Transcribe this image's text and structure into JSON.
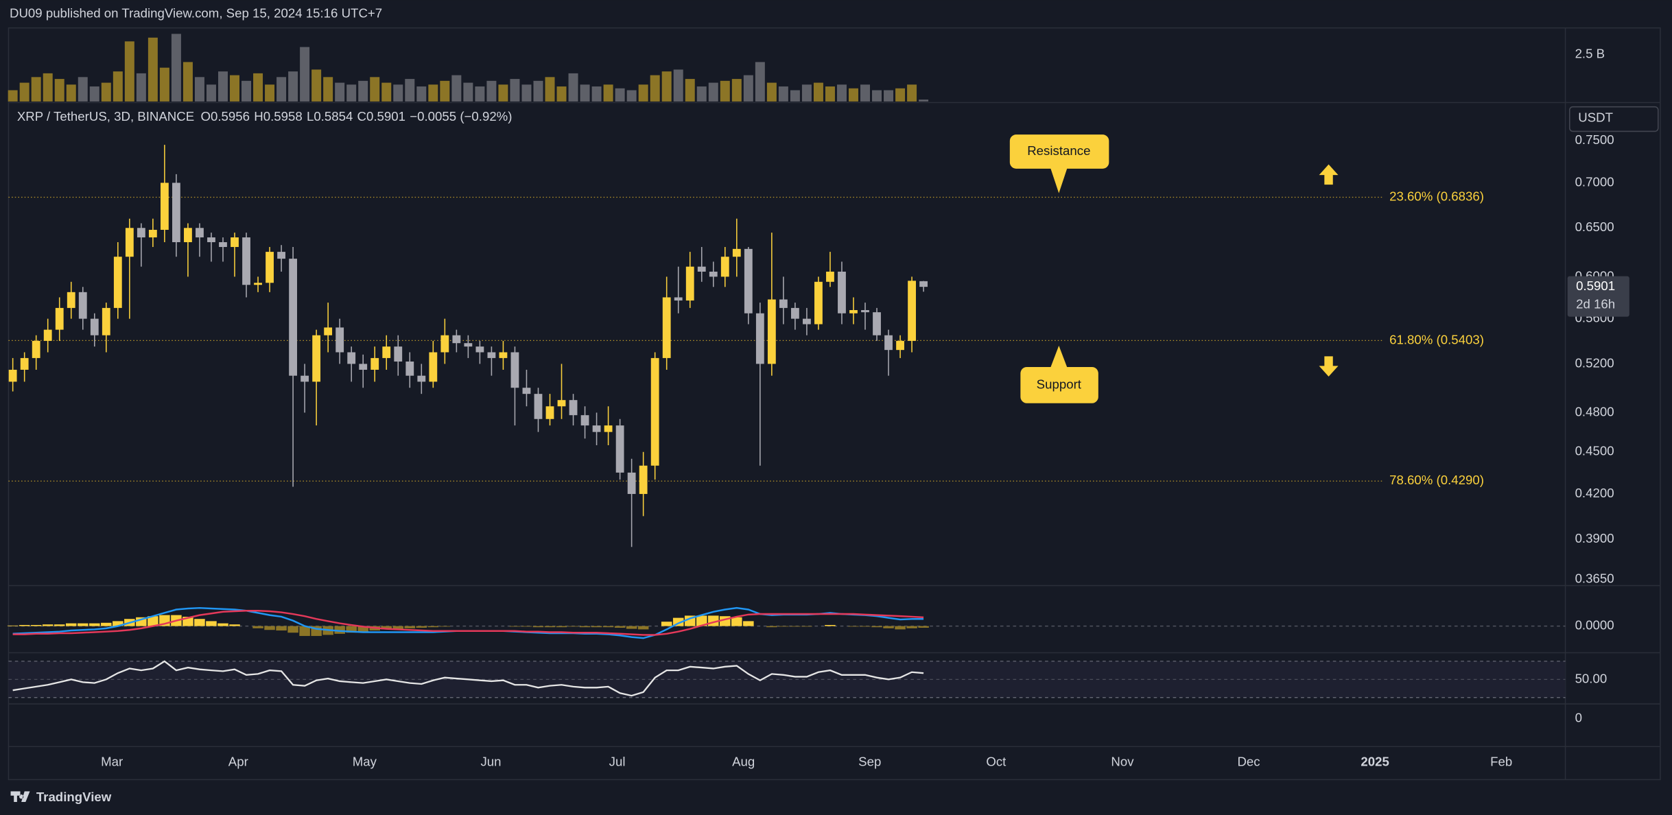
{
  "header": "DU09 published on TradingView.com, Sep 15, 2024 15:16 UTC+7",
  "footer": "TradingView",
  "chart_data": {
    "type": "candlestick",
    "symbol": "XRP / TetherUS, 3D, BINANCE",
    "legend_prefixes": [
      "O",
      "H",
      "L",
      "C"
    ],
    "change_label": "−0.0055 (−0.92%)",
    "currency": "USDT",
    "countdown": "2d 16h",
    "log_scale": true,
    "up_color": "#fbd13c",
    "down_color": "#a9a9b1",
    "volume_up_color": "#8c7526",
    "volume_down_color": "#5e6068",
    "open": [
      0.505,
      0.515,
      0.525,
      0.54,
      0.55,
      0.57,
      0.585,
      0.56,
      0.545,
      0.57,
      0.62,
      0.65,
      0.64,
      0.648,
      0.7,
      0.635,
      0.65,
      0.64,
      0.635,
      0.63,
      0.64,
      0.592,
      0.594,
      0.625,
      0.618,
      0.51,
      0.505,
      0.545,
      0.552,
      0.53,
      0.52,
      0.515,
      0.525,
      0.535,
      0.522,
      0.51,
      0.505,
      0.53,
      0.545,
      0.538,
      0.535,
      0.53,
      0.525,
      0.53,
      0.5,
      0.495,
      0.475,
      0.485,
      0.49,
      0.478,
      0.47,
      0.465,
      0.47,
      0.435,
      0.42,
      0.44,
      0.525,
      0.58,
      0.577,
      0.61,
      0.605,
      0.6,
      0.62,
      0.628,
      0.565,
      0.52,
      0.578,
      0.57,
      0.56,
      0.555,
      0.595,
      0.605,
      0.565,
      0.568,
      0.566,
      0.545,
      0.532,
      0.54,
      0.5956
    ],
    "high": [
      0.525,
      0.53,
      0.545,
      0.56,
      0.58,
      0.595,
      0.59,
      0.565,
      0.575,
      0.635,
      0.66,
      0.655,
      0.66,
      0.745,
      0.71,
      0.655,
      0.655,
      0.645,
      0.64,
      0.645,
      0.645,
      0.6,
      0.63,
      0.632,
      0.63,
      0.52,
      0.55,
      0.575,
      0.56,
      0.535,
      0.528,
      0.535,
      0.545,
      0.545,
      0.53,
      0.52,
      0.54,
      0.56,
      0.55,
      0.545,
      0.54,
      0.535,
      0.54,
      0.535,
      0.515,
      0.5,
      0.495,
      0.52,
      0.495,
      0.485,
      0.48,
      0.485,
      0.475,
      0.445,
      0.45,
      0.53,
      0.6,
      0.61,
      0.625,
      0.63,
      0.615,
      0.63,
      0.66,
      0.63,
      0.575,
      0.645,
      0.6,
      0.575,
      0.57,
      0.6,
      0.625,
      0.615,
      0.58,
      0.575,
      0.57,
      0.55,
      0.545,
      0.6,
      0.5958
    ],
    "low": [
      0.497,
      0.505,
      0.515,
      0.53,
      0.54,
      0.56,
      0.55,
      0.535,
      0.53,
      0.56,
      0.56,
      0.61,
      0.63,
      0.635,
      0.62,
      0.6,
      0.62,
      0.615,
      0.615,
      0.6,
      0.58,
      0.585,
      0.585,
      0.605,
      0.425,
      0.48,
      0.47,
      0.53,
      0.52,
      0.505,
      0.5,
      0.505,
      0.515,
      0.51,
      0.5,
      0.495,
      0.5,
      0.52,
      0.53,
      0.525,
      0.52,
      0.51,
      0.515,
      0.47,
      0.485,
      0.465,
      0.47,
      0.475,
      0.47,
      0.46,
      0.455,
      0.455,
      0.43,
      0.385,
      0.405,
      0.43,
      0.515,
      0.565,
      0.57,
      0.595,
      0.59,
      0.59,
      0.6,
      0.555,
      0.44,
      0.51,
      0.555,
      0.55,
      0.545,
      0.55,
      0.59,
      0.555,
      0.555,
      0.55,
      0.54,
      0.51,
      0.525,
      0.53,
      0.5854
    ],
    "close": [
      0.515,
      0.525,
      0.54,
      0.55,
      0.57,
      0.585,
      0.56,
      0.545,
      0.57,
      0.62,
      0.65,
      0.64,
      0.648,
      0.7,
      0.635,
      0.65,
      0.64,
      0.635,
      0.63,
      0.64,
      0.592,
      0.594,
      0.625,
      0.618,
      0.51,
      0.505,
      0.545,
      0.552,
      0.53,
      0.52,
      0.515,
      0.525,
      0.535,
      0.522,
      0.51,
      0.505,
      0.53,
      0.545,
      0.538,
      0.535,
      0.53,
      0.525,
      0.53,
      0.5,
      0.495,
      0.475,
      0.485,
      0.49,
      0.478,
      0.47,
      0.465,
      0.47,
      0.435,
      0.42,
      0.44,
      0.525,
      0.58,
      0.577,
      0.61,
      0.605,
      0.6,
      0.62,
      0.628,
      0.565,
      0.52,
      0.578,
      0.57,
      0.56,
      0.555,
      0.595,
      0.605,
      0.565,
      0.568,
      0.566,
      0.545,
      0.532,
      0.54,
      0.596,
      0.5901
    ],
    "ylim": [
      0.362,
      0.793
    ],
    "yticks": [
      {
        "value": 0.75,
        "label": "0.7500"
      },
      {
        "value": 0.7,
        "label": "0.7000"
      },
      {
        "value": 0.65,
        "label": "0.6500"
      },
      {
        "value": 0.6,
        "label": "0.6000"
      },
      {
        "value": 0.56,
        "label": "0.5600"
      },
      {
        "value": 0.52,
        "label": "0.5200"
      },
      {
        "value": 0.48,
        "label": "0.4800"
      },
      {
        "value": 0.45,
        "label": "0.4500"
      },
      {
        "value": 0.42,
        "label": "0.4200"
      },
      {
        "value": 0.39,
        "label": "0.3900"
      },
      {
        "value": 0.365,
        "label": "0.3650"
      }
    ],
    "fib_levels": [
      {
        "value": 0.6836,
        "label": "23.60% (0.6836)"
      },
      {
        "value": 0.5403,
        "label": "61.80% (0.5403)"
      },
      {
        "value": 0.429,
        "label": "78.60% (0.4290)"
      }
    ],
    "annotations": [
      "Resistance",
      "Support"
    ],
    "x_labels": [
      "Mar",
      "Apr",
      "May",
      "Jun",
      "Jul",
      "Aug",
      "Sep",
      "Oct",
      "Nov",
      "Dec",
      "2025",
      "Feb"
    ],
    "volume": [
      0.6,
      1.0,
      1.3,
      1.5,
      1.2,
      0.9,
      1.3,
      0.8,
      1.0,
      1.6,
      3.2,
      1.5,
      3.4,
      1.8,
      3.6,
      2.1,
      1.3,
      0.9,
      1.6,
      1.4,
      1.1,
      1.5,
      0.9,
      1.3,
      1.6,
      2.9,
      1.7,
      1.3,
      1.0,
      0.9,
      1.1,
      1.3,
      1.0,
      0.9,
      1.2,
      0.8,
      0.9,
      1.1,
      1.4,
      1.0,
      0.8,
      1.1,
      0.9,
      1.2,
      0.9,
      1.1,
      1.3,
      0.8,
      1.5,
      0.9,
      0.8,
      0.9,
      0.7,
      0.6,
      0.9,
      1.4,
      1.6,
      1.7,
      1.2,
      0.8,
      1.0,
      1.1,
      1.2,
      1.4,
      2.1,
      1.0,
      0.8,
      0.6,
      0.9,
      1.0,
      0.8,
      0.9,
      0.7,
      0.9,
      0.6,
      0.6,
      0.7,
      0.9,
      0.1
    ],
    "volume_ylim": [
      0,
      3.86
    ],
    "volume_yticks": [
      {
        "value": 2.5,
        "label": "2.5 B"
      }
    ],
    "macd_color": "#2196f3",
    "signal_color": "#e5395a",
    "macd": [
      -0.014,
      -0.013,
      -0.012,
      -0.011,
      -0.01,
      -0.008,
      -0.007,
      -0.006,
      -0.004,
      0.0,
      0.006,
      0.012,
      0.018,
      0.024,
      0.03,
      0.032,
      0.033,
      0.032,
      0.031,
      0.03,
      0.028,
      0.024,
      0.02,
      0.017,
      0.01,
      0.0,
      -0.005,
      -0.007,
      -0.009,
      -0.01,
      -0.011,
      -0.011,
      -0.011,
      -0.011,
      -0.011,
      -0.011,
      -0.011,
      -0.01,
      -0.009,
      -0.009,
      -0.009,
      -0.009,
      -0.009,
      -0.01,
      -0.011,
      -0.012,
      -0.013,
      -0.013,
      -0.013,
      -0.014,
      -0.014,
      -0.015,
      -0.017,
      -0.02,
      -0.022,
      -0.016,
      -0.006,
      0.005,
      0.014,
      0.02,
      0.026,
      0.03,
      0.033,
      0.03,
      0.022,
      0.02,
      0.021,
      0.021,
      0.021,
      0.022,
      0.024,
      0.022,
      0.021,
      0.02,
      0.018,
      0.015,
      0.012,
      0.013,
      0.013
    ],
    "signal": [
      -0.015,
      -0.015,
      -0.014,
      -0.014,
      -0.013,
      -0.013,
      -0.012,
      -0.011,
      -0.01,
      -0.009,
      -0.007,
      -0.004,
      0.0,
      0.004,
      0.01,
      0.015,
      0.02,
      0.023,
      0.026,
      0.027,
      0.028,
      0.028,
      0.027,
      0.025,
      0.022,
      0.018,
      0.013,
      0.009,
      0.005,
      0.002,
      -0.001,
      -0.003,
      -0.005,
      -0.006,
      -0.007,
      -0.008,
      -0.009,
      -0.009,
      -0.009,
      -0.009,
      -0.009,
      -0.009,
      -0.009,
      -0.009,
      -0.01,
      -0.01,
      -0.011,
      -0.011,
      -0.012,
      -0.012,
      -0.012,
      -0.013,
      -0.014,
      -0.015,
      -0.016,
      -0.016,
      -0.014,
      -0.01,
      -0.005,
      0.001,
      0.007,
      0.012,
      0.017,
      0.021,
      0.022,
      0.022,
      0.022,
      0.022,
      0.022,
      0.022,
      0.022,
      0.022,
      0.022,
      0.021,
      0.02,
      0.019,
      0.018,
      0.017,
      0.016
    ],
    "macd_hist": [
      0.001,
      0.002,
      0.002,
      0.003,
      0.003,
      0.005,
      0.005,
      0.005,
      0.006,
      0.009,
      0.013,
      0.016,
      0.018,
      0.02,
      0.02,
      0.017,
      0.013,
      0.009,
      0.005,
      0.003,
      0.0,
      -0.004,
      -0.007,
      -0.008,
      -0.012,
      -0.018,
      -0.018,
      -0.016,
      -0.014,
      -0.012,
      -0.01,
      -0.008,
      -0.006,
      -0.005,
      -0.004,
      -0.003,
      -0.002,
      -0.001,
      0.0,
      0.0,
      0.0,
      0.0,
      0.0,
      -0.001,
      -0.001,
      -0.002,
      -0.002,
      -0.002,
      -0.001,
      -0.002,
      -0.002,
      -0.002,
      -0.003,
      -0.005,
      -0.006,
      0.0,
      0.008,
      0.015,
      0.019,
      0.019,
      0.019,
      0.018,
      0.016,
      0.009,
      0.0,
      -0.002,
      -0.001,
      -0.001,
      -0.001,
      0.0,
      0.002,
      0.0,
      -0.001,
      -0.001,
      -0.002,
      -0.004,
      -0.006,
      -0.004,
      -0.003
    ],
    "macd_ylim": [
      -0.0485,
      0.0718
    ],
    "macd_yticks": [
      {
        "value": 0,
        "label": "0.0000"
      }
    ],
    "rsi": [
      38,
      40,
      42,
      44,
      47,
      50,
      47,
      46,
      50,
      57,
      62,
      60,
      62,
      70,
      60,
      63,
      61,
      60,
      59,
      61,
      55,
      56,
      60,
      59,
      44,
      43,
      49,
      51,
      48,
      47,
      46,
      48,
      50,
      48,
      46,
      45,
      49,
      52,
      51,
      50,
      49,
      48,
      49,
      44,
      44,
      41,
      43,
      44,
      42,
      41,
      41,
      42,
      35,
      32,
      36,
      52,
      60,
      60,
      64,
      63,
      62,
      64,
      65,
      56,
      49,
      56,
      55,
      53,
      53,
      58,
      60,
      55,
      55,
      55,
      52,
      50,
      52,
      58,
      57
    ],
    "rsi_ylim": [
      23,
      78.2
    ],
    "rsi_bands": [
      30,
      70
    ],
    "rsi_yticks": [
      {
        "value": 50,
        "label": "50.00"
      }
    ],
    "osc_yticks": [
      0
    ]
  }
}
